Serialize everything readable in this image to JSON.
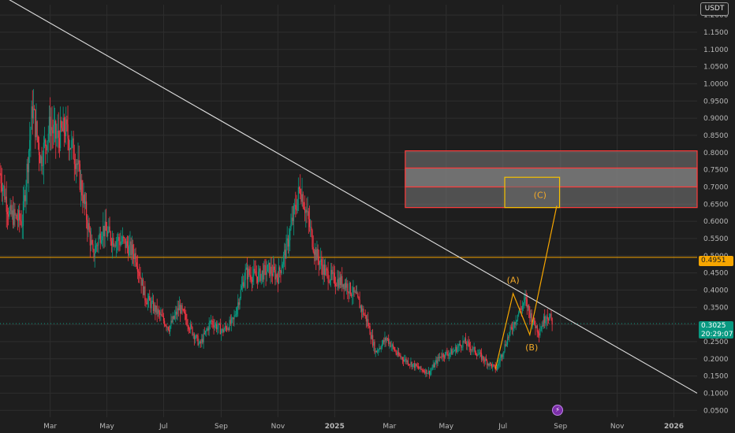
{
  "chart_data": {
    "type": "candlestick",
    "currency": "USDT",
    "y_axis": {
      "ticks": [
        "1.2000",
        "1.1500",
        "1.1000",
        "1.0500",
        "1.0000",
        "0.9500",
        "0.9000",
        "0.8500",
        "0.8000",
        "0.7500",
        "0.7000",
        "0.6500",
        "0.6000",
        "0.5500",
        "0.5000",
        "0.4500",
        "0.4000",
        "0.3500",
        "0.3000",
        "0.2500",
        "0.2000",
        "0.1500",
        "0.1000",
        "0.0500"
      ],
      "ylim": [
        0.03,
        1.23
      ],
      "side": "right"
    },
    "x_axis": {
      "ticks": [
        "Mar",
        "May",
        "Jul",
        "Sep",
        "Nov",
        "2025",
        "Mar",
        "May",
        "Jul",
        "Sep",
        "Nov",
        "2026"
      ],
      "tick_dates": [
        "2024-03-01",
        "2024-05-01",
        "2024-07-01",
        "2024-09-01",
        "2024-11-01",
        "2025-01-01",
        "2025-03-01",
        "2025-05-01",
        "2025-07-01",
        "2025-09-01",
        "2025-11-01",
        "2026-01-01"
      ],
      "xlim": [
        "2024-01-07",
        "2026-01-26"
      ],
      "bold_ticks": [
        "2025",
        "2026"
      ]
    },
    "price_path": [
      [
        "2024-01-07",
        0.74
      ],
      [
        "2024-01-17",
        0.62
      ],
      [
        "2024-01-31",
        0.6
      ],
      [
        "2024-02-11",
        0.93
      ],
      [
        "2024-02-20",
        0.78
      ],
      [
        "2024-03-01",
        0.88
      ],
      [
        "2024-03-08",
        0.84
      ],
      [
        "2024-03-17",
        0.87
      ],
      [
        "2024-03-29",
        0.78
      ],
      [
        "2024-04-08",
        0.63
      ],
      [
        "2024-04-16",
        0.5
      ],
      [
        "2024-04-26",
        0.58
      ],
      [
        "2024-05-07",
        0.55
      ],
      [
        "2024-05-19",
        0.54
      ],
      [
        "2024-06-01",
        0.5
      ],
      [
        "2024-06-11",
        0.38
      ],
      [
        "2024-06-23",
        0.34
      ],
      [
        "2024-07-07",
        0.29
      ],
      [
        "2024-07-18",
        0.35
      ],
      [
        "2024-07-28",
        0.3
      ],
      [
        "2024-08-09",
        0.24
      ],
      [
        "2024-08-21",
        0.31
      ],
      [
        "2024-09-02",
        0.28
      ],
      [
        "2024-09-14",
        0.31
      ],
      [
        "2024-09-27",
        0.45
      ],
      [
        "2024-10-10",
        0.44
      ],
      [
        "2024-10-22",
        0.46
      ],
      [
        "2024-11-01",
        0.44
      ],
      [
        "2024-11-10",
        0.52
      ],
      [
        "2024-11-18",
        0.62
      ],
      [
        "2024-11-25",
        0.7
      ],
      [
        "2024-12-03",
        0.61
      ],
      [
        "2024-12-11",
        0.51
      ],
      [
        "2024-12-22",
        0.45
      ],
      [
        "2025-01-01",
        0.43
      ],
      [
        "2025-01-12",
        0.42
      ],
      [
        "2025-01-24",
        0.38
      ],
      [
        "2025-02-05",
        0.31
      ],
      [
        "2025-02-14",
        0.22
      ],
      [
        "2025-02-26",
        0.26
      ],
      [
        "2025-03-10",
        0.21
      ],
      [
        "2025-03-22",
        0.19
      ],
      [
        "2025-04-03",
        0.17
      ],
      [
        "2025-04-13",
        0.16
      ],
      [
        "2025-04-25",
        0.21
      ],
      [
        "2025-05-08",
        0.22
      ],
      [
        "2025-05-20",
        0.25
      ],
      [
        "2025-06-02",
        0.22
      ],
      [
        "2025-06-14",
        0.19
      ],
      [
        "2025-06-24",
        0.17
      ],
      [
        "2025-07-06",
        0.26
      ],
      [
        "2025-07-17",
        0.33
      ],
      [
        "2025-07-25",
        0.37
      ],
      [
        "2025-08-02",
        0.31
      ],
      [
        "2025-08-09",
        0.28
      ],
      [
        "2025-08-17",
        0.33
      ],
      [
        "2025-08-23",
        0.31
      ]
    ],
    "current_price": "0.3025",
    "countdown": "20:29:07",
    "horizontal_line": {
      "value": 0.4951,
      "label": "0.4951",
      "color": "#f7a600"
    },
    "trendline": {
      "from": [
        "2024-01-07",
        1.26
      ],
      "to": [
        "2026-01-26",
        0.1
      ],
      "color": "#e0e0e0"
    },
    "zones": [
      {
        "y_top": 0.805,
        "y_bottom": 0.64,
        "fill": "#7a7a7a",
        "stroke": "#ff3b3b",
        "from": "2025-03-18",
        "to": "2026-01-26"
      },
      {
        "y_top": 0.755,
        "y_bottom": 0.7,
        "fill": "#8a8a8a",
        "stroke": "#ff3b3b",
        "from": "2025-03-18",
        "to": "2026-01-26"
      },
      {
        "y_top": 0.728,
        "y_bottom": 0.64,
        "fill": "#6a6a6a",
        "stroke": "#f7c200",
        "from": "2025-07-03",
        "to": "2025-08-31"
      }
    ],
    "wave_path": [
      [
        "2025-06-23",
        0.17
      ],
      [
        "2025-07-12",
        0.39
      ],
      [
        "2025-07-30",
        0.27
      ],
      [
        "2025-08-28",
        0.645
      ]
    ],
    "wave_labels": [
      {
        "text": "(A)",
        "date": "2025-07-12",
        "value": 0.42
      },
      {
        "text": "(B)",
        "date": "2025-08-01",
        "value": 0.225
      },
      {
        "text": "(C)",
        "date": "2025-08-10",
        "value": 0.668
      }
    ],
    "colors": {
      "up": "#089981",
      "down": "#f23645",
      "grid": "#2e2e2e",
      "wave": "#f7a600"
    }
  },
  "ui": {
    "currency_badge": "USDT",
    "hline_tag": "0.4951",
    "price_tag": "0.3025",
    "countdown_tag": "20:29:07",
    "event_icon": "lightning-icon"
  }
}
